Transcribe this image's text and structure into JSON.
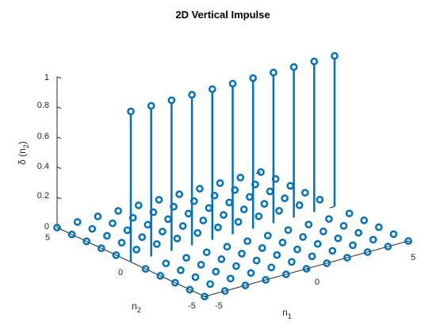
{
  "chart_data": {
    "type": "stem3",
    "title": "2D Vertical Impulse",
    "xlabel": {
      "main": "n",
      "sub": "1"
    },
    "ylabel": {
      "main": "n",
      "sub": "2"
    },
    "zlabel": {
      "pre": "δ (n",
      "sub": "2",
      "post": ")"
    },
    "n1_range": [
      -5,
      5
    ],
    "n2_range": [
      -5,
      5
    ],
    "zlim": [
      0,
      1
    ],
    "x_ticks": [
      "-5",
      "0",
      "5"
    ],
    "y_ticks": [
      "-5",
      "0",
      "5"
    ],
    "z_ticks": [
      "0",
      "0.2",
      "0.4",
      "0.6",
      "0.8",
      "1"
    ],
    "impulse": {
      "n2": 0,
      "value": 1,
      "zero_value": 0
    },
    "series_color": "#0072BD",
    "grid": false
  }
}
